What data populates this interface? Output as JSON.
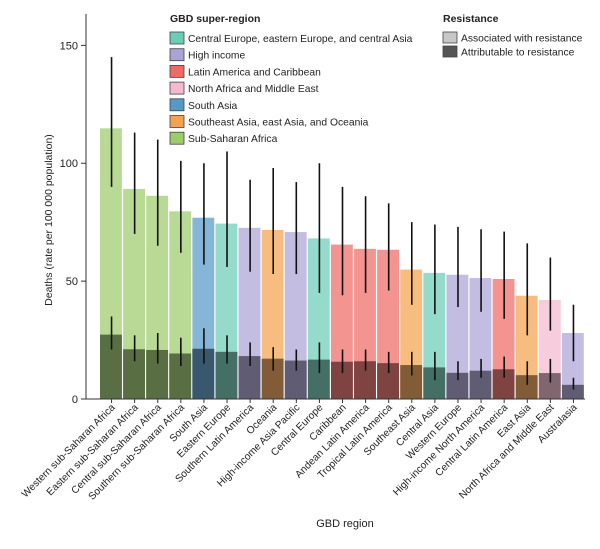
{
  "chart_data": {
    "type": "bar",
    "xlabel": "GBD region",
    "ylabel": "Deaths (rate per 100 000 population)",
    "ylim": [
      0,
      165
    ],
    "yticks": [
      0,
      50,
      100,
      150
    ],
    "grid": false,
    "legend_placement": "top",
    "super_region_legend": {
      "title": "GBD super-region",
      "entries": [
        {
          "name": "Central Europe, eastern Europe, and central Asia",
          "color": "#6ccdb7"
        },
        {
          "name": "High income",
          "color": "#aaa3d6"
        },
        {
          "name": "Latin America and Caribbean",
          "color": "#ef6b66"
        },
        {
          "name": "North Africa and Middle East",
          "color": "#f4b8cf"
        },
        {
          "name": "South Asia",
          "color": "#5698c7"
        },
        {
          "name": "Southeast Asia, east Asia, and Oceania",
          "color": "#f4a24e"
        },
        {
          "name": "Sub-Saharan Africa",
          "color": "#9ccc6c"
        }
      ]
    },
    "resistance_legend": {
      "title": "Resistance",
      "entries": [
        {
          "name": "Associated with resistance",
          "color": "#c7c7c7"
        },
        {
          "name": "Attributable to resistance",
          "color": "#555555"
        }
      ]
    },
    "categories": [
      "Western sub-Saharan Africa",
      "Eastern sub-Saharan Africa",
      "Central sub-Saharan Africa",
      "Southern sub-Saharan Africa",
      "South Asia",
      "Eastern Europe",
      "Southern Latin America",
      "Oceania",
      "High-income Asia Pacific",
      "Central Europe",
      "Caribbean",
      "Andean Latin America",
      "Tropical Latin America",
      "Southeast Asia",
      "Central Asia",
      "Western Europe",
      "High-income North America",
      "Central Latin America",
      "East Asia",
      "North Africa and Middle East",
      "Australasia"
    ],
    "super_region_index": [
      6,
      6,
      6,
      6,
      4,
      0,
      1,
      5,
      1,
      0,
      2,
      2,
      2,
      5,
      0,
      1,
      1,
      2,
      5,
      3,
      1
    ],
    "series": [
      {
        "name": "Associated with resistance",
        "values": [
          114.8,
          89.1,
          86.2,
          79.6,
          76.9,
          74.4,
          72.6,
          71.7,
          70.8,
          68.1,
          65.5,
          63.7,
          63.3,
          54.9,
          53.5,
          52.7,
          51.3,
          50.9,
          43.8,
          42.0,
          28.0
        ],
        "lower": [
          90,
          70,
          65,
          62,
          57,
          56,
          54,
          53,
          53,
          45,
          44,
          45,
          46,
          40,
          36,
          39,
          37,
          34,
          27,
          29,
          16
        ],
        "upper": [
          145,
          113,
          110,
          101,
          100,
          105,
          93,
          98,
          92,
          100,
          90,
          86,
          83,
          75,
          74,
          73,
          72,
          71,
          66,
          60,
          40
        ]
      },
      {
        "name": "Attributable to resistance",
        "values": [
          27.3,
          21.1,
          20.8,
          19.3,
          21.3,
          20.0,
          18.2,
          17.1,
          16.3,
          16.7,
          15.8,
          16.0,
          15.2,
          14.4,
          13.4,
          11.1,
          12.0,
          12.6,
          10.1,
          11.0,
          6.0
        ],
        "lower": [
          21,
          16,
          15,
          14,
          15,
          15,
          14,
          12,
          12,
          11,
          11,
          12,
          11,
          10,
          8,
          8,
          9,
          9,
          6,
          7,
          4
        ],
        "upper": [
          35,
          27,
          28,
          26,
          30,
          27,
          24,
          22,
          21,
          24,
          21,
          21,
          20,
          20,
          20,
          16,
          17,
          18,
          16,
          17,
          9
        ]
      }
    ]
  }
}
